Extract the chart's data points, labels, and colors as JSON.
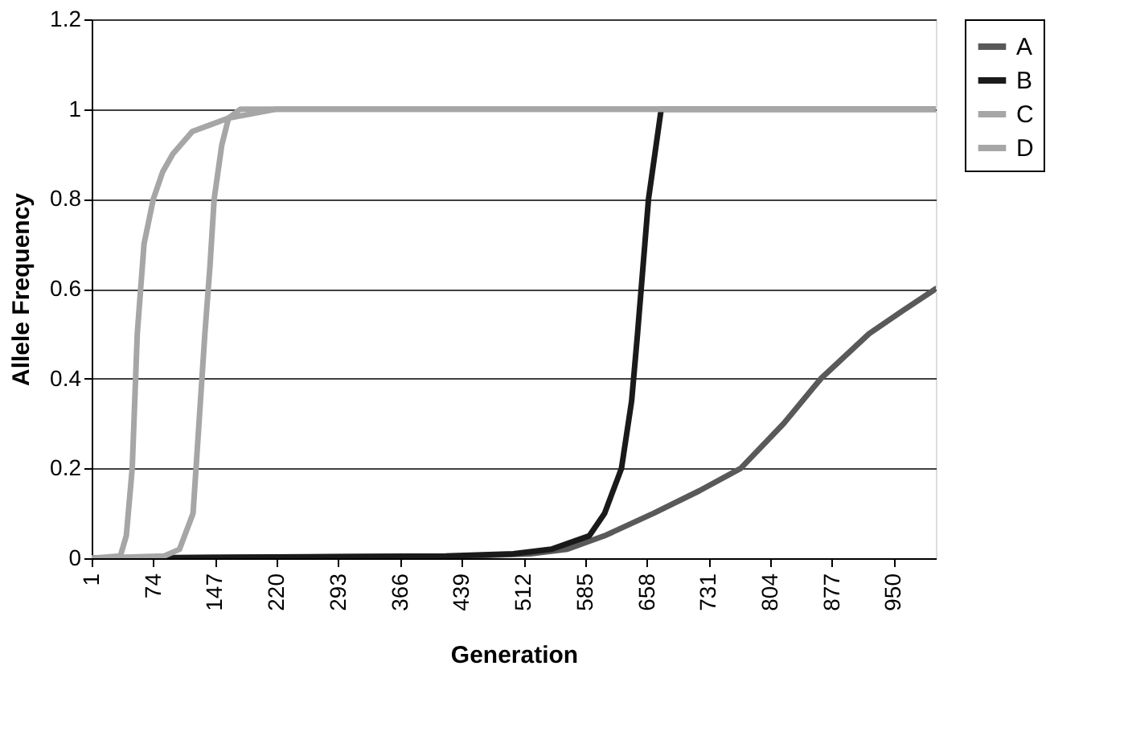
{
  "chart_data": {
    "type": "line",
    "xlabel": "Generation",
    "ylabel": "Allele Frequency",
    "xlim": [
      1,
      1000
    ],
    "xticks": [
      1,
      74,
      147,
      220,
      293,
      366,
      439,
      512,
      585,
      658,
      731,
      804,
      877,
      950
    ],
    "ylim": [
      0,
      1.2
    ],
    "yticks": [
      0,
      0.2,
      0.4,
      0.6,
      0.8,
      1,
      1.2
    ],
    "grid": "y",
    "legend": "right",
    "line_style": "solid",
    "marker": "none",
    "series": [
      {
        "name": "A",
        "color": "#595959",
        "x": [
          1,
          450,
          520,
          564,
          608,
          666,
          720,
          769,
          820,
          864,
          921,
          960,
          1000
        ],
        "values": [
          0,
          0.005,
          0.01,
          0.02,
          0.05,
          0.1,
          0.15,
          0.2,
          0.3,
          0.4,
          0.5,
          0.55,
          0.6
        ]
      },
      {
        "name": "B",
        "color": "#1a1a1a",
        "x": [
          1,
          420,
          500,
          545,
          590,
          608,
          628,
          640,
          647,
          660,
          675,
          1000
        ],
        "values": [
          0,
          0.005,
          0.01,
          0.02,
          0.05,
          0.1,
          0.2,
          0.35,
          0.5,
          0.8,
          1,
          1
        ]
      },
      {
        "name": "C",
        "color": "#a6a6a6",
        "x": [
          1,
          35,
          42,
          49,
          55,
          63,
          74,
          85,
          97,
          120,
          163,
          220,
          1000
        ],
        "values": [
          0,
          0.005,
          0.05,
          0.2,
          0.5,
          0.7,
          0.8,
          0.86,
          0.9,
          0.95,
          0.98,
          1,
          1
        ]
      },
      {
        "name": "D",
        "color": "#a6a6a6",
        "x": [
          1,
          87,
          105,
          121,
          128,
          135,
          141,
          146,
          155,
          163,
          177,
          1000
        ],
        "values": [
          0,
          0.005,
          0.02,
          0.1,
          0.3,
          0.5,
          0.65,
          0.8,
          0.92,
          0.98,
          1,
          1
        ]
      }
    ]
  }
}
